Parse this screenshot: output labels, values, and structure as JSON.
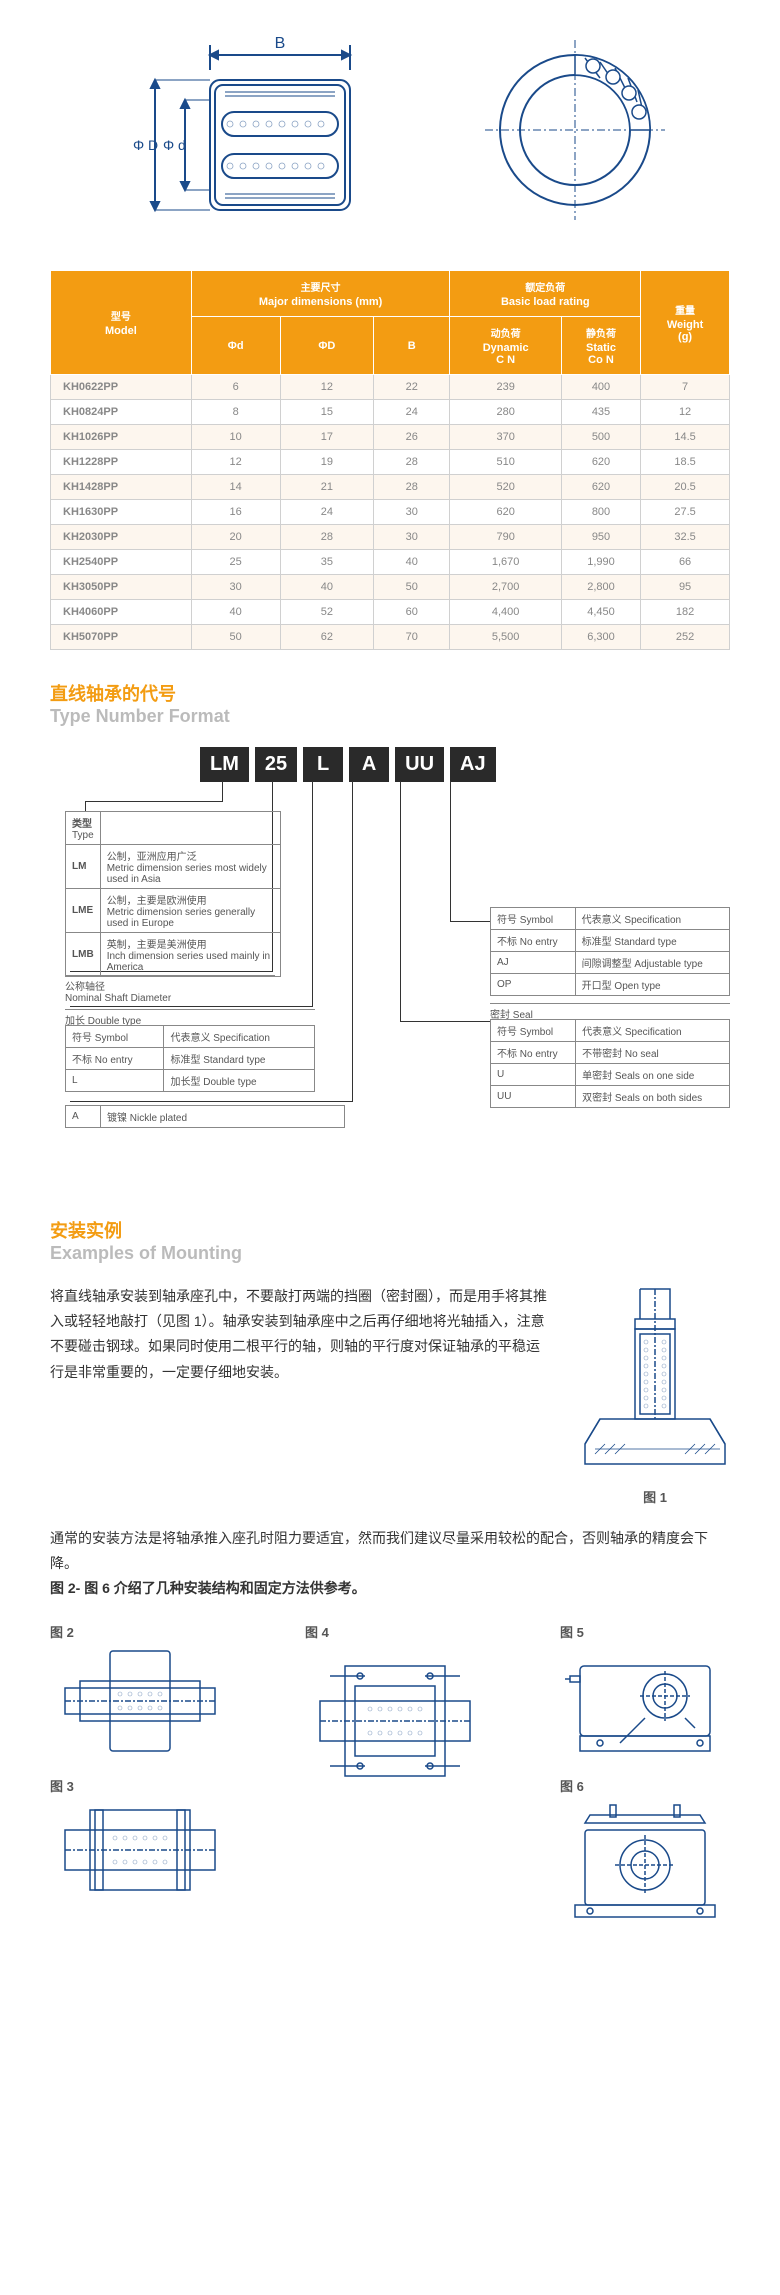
{
  "top_diagram": {
    "labels": {
      "B": "B",
      "phiD": "Φ D",
      "phid": "Φ d"
    },
    "stroke_color": "#1a4a8a"
  },
  "spec_table": {
    "headers": {
      "model_cn": "型号",
      "model_en": "Model",
      "dims_cn": "主要尺寸",
      "dims_en": "Major dimensions (mm)",
      "load_cn": "额定负荷",
      "load_en": "Basic load rating",
      "weight_cn": "重量",
      "weight_en": "Weight",
      "weight_unit": "(g)",
      "phid": "Φd",
      "phiD": "ΦD",
      "B": "B",
      "dyn_cn": "动负荷",
      "dyn_en": "Dynamic",
      "dyn_unit": "C N",
      "stat_cn": "静负荷",
      "stat_en": "Static",
      "stat_unit": "Co N"
    },
    "header_bg": "#f39c12",
    "rows": [
      [
        "KH0622PP",
        "6",
        "12",
        "22",
        "239",
        "400",
        "7"
      ],
      [
        "KH0824PP",
        "8",
        "15",
        "24",
        "280",
        "435",
        "12"
      ],
      [
        "KH1026PP",
        "10",
        "17",
        "26",
        "370",
        "500",
        "14.5"
      ],
      [
        "KH1228PP",
        "12",
        "19",
        "28",
        "510",
        "620",
        "18.5"
      ],
      [
        "KH1428PP",
        "14",
        "21",
        "28",
        "520",
        "620",
        "20.5"
      ],
      [
        "KH1630PP",
        "16",
        "24",
        "30",
        "620",
        "800",
        "27.5"
      ],
      [
        "KH2030PP",
        "20",
        "28",
        "30",
        "790",
        "950",
        "32.5"
      ],
      [
        "KH2540PP",
        "25",
        "35",
        "40",
        "1,670",
        "1,990",
        "66"
      ],
      [
        "KH3050PP",
        "30",
        "40",
        "50",
        "2,700",
        "2,800",
        "95"
      ],
      [
        "KH4060PP",
        "40",
        "52",
        "60",
        "4,400",
        "4,450",
        "182"
      ],
      [
        "KH5070PP",
        "50",
        "62",
        "70",
        "5,500",
        "6,300",
        "252"
      ]
    ]
  },
  "section1": {
    "title_cn": "直线轴承的代号",
    "title_en": "Type Number Format"
  },
  "type_format": {
    "codes": [
      "LM",
      "25",
      "L",
      "A",
      "UU",
      "AJ"
    ],
    "type_label_cn": "类型",
    "type_label_en": "Type",
    "types": [
      {
        "code": "LM",
        "desc_cn": "公制，亚洲应用广泛",
        "desc_en": "Metric dimension series most widely used in Asia"
      },
      {
        "code": "LME",
        "desc_cn": "公制，主要是欧洲使用",
        "desc_en": "Metric dimension series generally used in Europe"
      },
      {
        "code": "LMB",
        "desc_cn": "英制，主要是美洲使用",
        "desc_en": "Inch dimension series used mainly in America"
      }
    ],
    "nominal_cn": "公称轴径",
    "nominal_en": "Nominal Shaft Diameter",
    "double_cn": "加长 Double type",
    "sym_h": "符号 Symbol",
    "spec_h": "代表意义 Specification",
    "len_rows": [
      [
        "不标 No entry",
        "标准型 Standard type"
      ],
      [
        "L",
        "加长型 Double type"
      ]
    ],
    "a_row": [
      "A",
      "镀镍 Nickle plated"
    ],
    "seal_label": "密封 Seal",
    "seal_rows": [
      [
        "不标 No entry",
        "不带密封 No seal"
      ],
      [
        "U",
        "单密封 Seals on one side"
      ],
      [
        "UU",
        "双密封 Seals on both sides"
      ]
    ],
    "adj_rows": [
      [
        "不标 No entry",
        "标准型 Standard type"
      ],
      [
        "AJ",
        "间隙调整型 Adjustable type"
      ],
      [
        "OP",
        "开口型 Open type"
      ]
    ]
  },
  "section2": {
    "title_cn": "安装实例",
    "title_en": "Examples of Mounting"
  },
  "mounting": {
    "para1": "将直线轴承安装到轴承座孔中，不要敲打两端的挡圈（密封圈），而是用手将其推入或轻轻地敲打（见图 1）。轴承安装到轴承座中之后再仔细地将光轴插入，注意不要碰击钢球。如果同时使用二根平行的轴，则轴的平行度对保证轴承的平稳运行是非常重要的，一定要仔细地安装。",
    "fig1": "图 1",
    "para2a": "通常的安装方法是将轴承推入座孔时阻力要适宜，然而我们建议尽量采用较松的配合，否则轴承的精度会下降。",
    "para2b": "图 2- 图 6 介绍了几种安装结构和固定方法供参考。",
    "fig2": "图 2",
    "fig3": "图 3",
    "fig4": "图 4",
    "fig5": "图 5",
    "fig6": "图 6"
  }
}
